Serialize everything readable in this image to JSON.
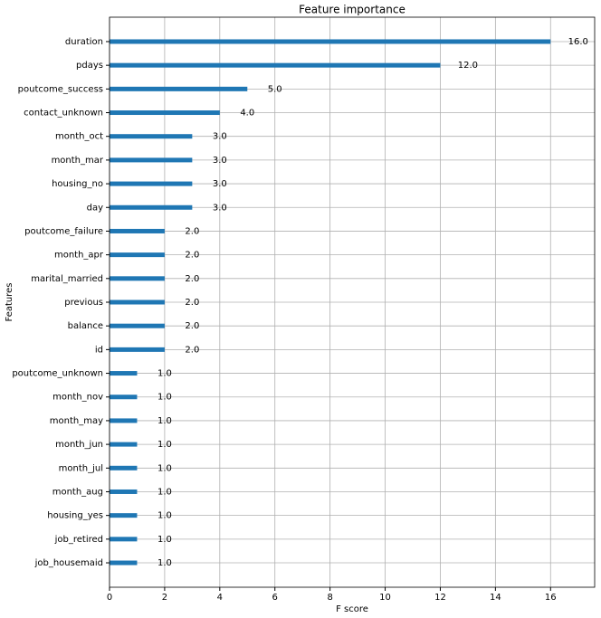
{
  "chart_data": {
    "type": "barh",
    "title": "Feature importance",
    "xlabel": "F score",
    "ylabel": "Features",
    "categories": [
      "duration",
      "pdays",
      "poutcome_success",
      "contact_unknown",
      "month_oct",
      "month_mar",
      "housing_no",
      "day",
      "poutcome_failure",
      "month_apr",
      "marital_married",
      "previous",
      "balance",
      "id",
      "poutcome_unknown",
      "month_nov",
      "month_may",
      "month_jun",
      "month_jul",
      "month_aug",
      "housing_yes",
      "job_retired",
      "job_housemaid"
    ],
    "values": [
      16,
      12,
      5,
      4,
      3,
      3,
      3,
      3,
      2,
      2,
      2,
      2,
      2,
      2,
      1,
      1,
      1,
      1,
      1,
      1,
      1,
      1,
      1
    ],
    "value_labels": [
      "16.0",
      "12.0",
      "5.0",
      "4.0",
      "3.0",
      "3.0",
      "3.0",
      "3.0",
      "2.0",
      "2.0",
      "2.0",
      "2.0",
      "2.0",
      "2.0",
      "1.0",
      "1.0",
      "1.0",
      "1.0",
      "1.0",
      "1.0",
      "1.0",
      "1.0",
      "1.0"
    ],
    "color": "#1f77b4",
    "xlim": [
      0,
      17.6
    ],
    "xticks": [
      0,
      2,
      4,
      6,
      8,
      10,
      12,
      14,
      16
    ],
    "grid": true
  }
}
